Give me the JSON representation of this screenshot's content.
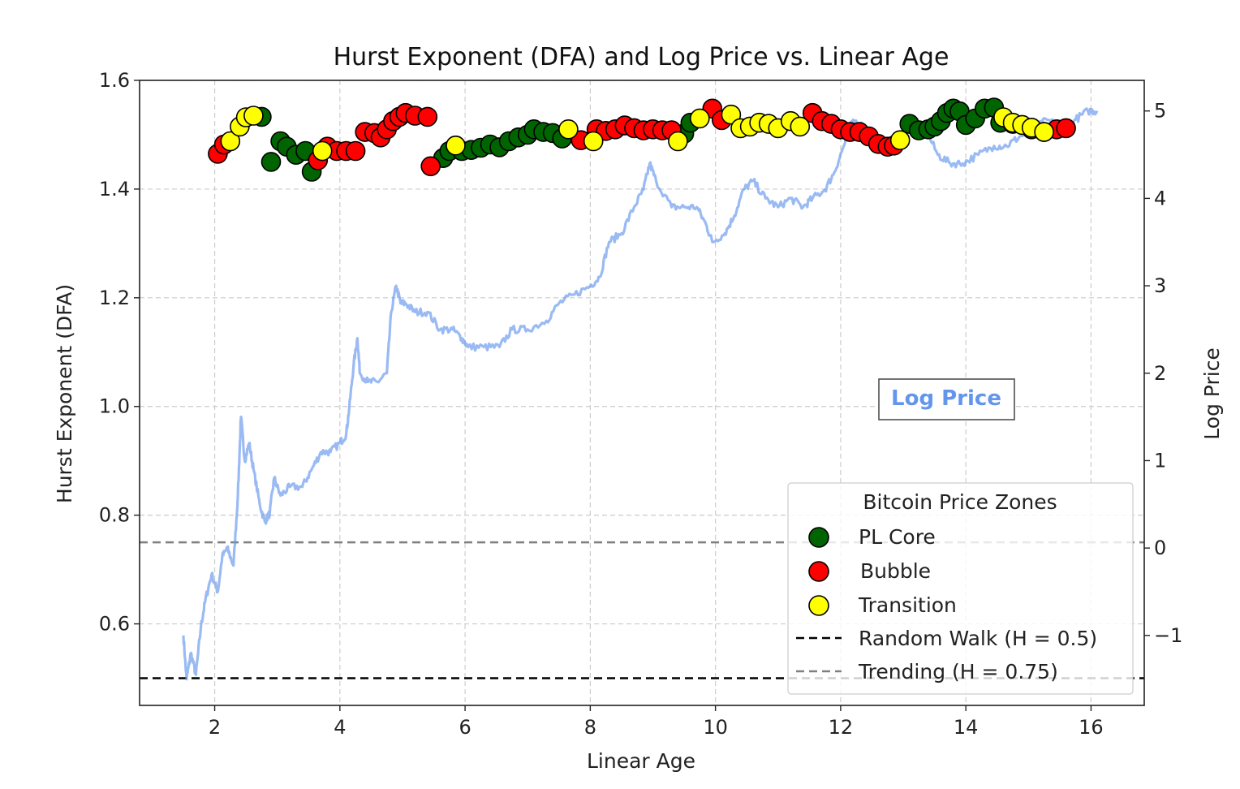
{
  "chart_data": {
    "type": "scatter",
    "title": "Hurst Exponent (DFA) and Log Price vs. Linear Age",
    "xlabel": "Linear Age",
    "ylabel": "Hurst Exponent (DFA)",
    "ylabel_right": "Log Price",
    "xlim": [
      0.8,
      16.85
    ],
    "ylim": [
      0.45,
      1.6
    ],
    "ylim_right": [
      -1.8,
      5.35
    ],
    "x_ticks": [
      "2",
      "4",
      "6",
      "8",
      "10",
      "12",
      "14",
      "16"
    ],
    "y_ticks": [
      "0.6",
      "0.8",
      "1.0",
      "1.2",
      "1.4",
      "1.6"
    ],
    "y_right_ticks": [
      "−1",
      "0",
      "1",
      "2",
      "3",
      "4",
      "5"
    ],
    "grid": true,
    "annotation": "Log Price",
    "colors": {
      "pl_core": "#006400",
      "bubble": "#ff0000",
      "transition": "#ffff00",
      "log_price": "#6495ed",
      "random_walk": "#000000",
      "trending": "#808080"
    },
    "legend": {
      "title": "Bitcoin Price Zones",
      "placement": "lower right",
      "entries": [
        "PL Core",
        "Bubble",
        "Transition",
        "Random Walk (H = 0.5)",
        "Trending (H = 0.75)"
      ]
    },
    "reference_lines": [
      {
        "name": "Random Walk (H = 0.5)",
        "y": 0.5,
        "style": "dashed",
        "color": "#000000"
      },
      {
        "name": "Trending (H = 0.75)",
        "y": 0.75,
        "style": "dashed",
        "color": "#808080"
      }
    ],
    "log_price_series": {
      "name": "Log Price",
      "axis": "right",
      "points": [
        [
          1.5,
          -1.0
        ],
        [
          1.55,
          -1.5
        ],
        [
          1.62,
          -1.2
        ],
        [
          1.7,
          -1.45
        ],
        [
          1.78,
          -0.9
        ],
        [
          1.85,
          -0.6
        ],
        [
          1.95,
          -0.3
        ],
        [
          2.05,
          -0.5
        ],
        [
          2.12,
          -0.1
        ],
        [
          2.2,
          0.0
        ],
        [
          2.3,
          -0.2
        ],
        [
          2.37,
          0.6
        ],
        [
          2.42,
          1.5
        ],
        [
          2.48,
          1.0
        ],
        [
          2.55,
          1.2
        ],
        [
          2.62,
          0.9
        ],
        [
          2.72,
          0.5
        ],
        [
          2.8,
          0.3
        ],
        [
          2.88,
          0.4
        ],
        [
          2.95,
          0.8
        ],
        [
          3.05,
          0.6
        ],
        [
          3.2,
          0.7
        ],
        [
          3.4,
          0.7
        ],
        [
          3.55,
          0.9
        ],
        [
          3.7,
          1.1
        ],
        [
          3.85,
          1.1
        ],
        [
          4.0,
          1.2
        ],
        [
          4.1,
          1.3
        ],
        [
          4.15,
          1.6
        ],
        [
          4.22,
          2.1
        ],
        [
          4.28,
          2.4
        ],
        [
          4.32,
          2.0
        ],
        [
          4.45,
          1.9
        ],
        [
          4.6,
          1.9
        ],
        [
          4.75,
          2.0
        ],
        [
          4.82,
          2.7
        ],
        [
          4.9,
          3.0
        ],
        [
          4.97,
          2.8
        ],
        [
          5.05,
          2.8
        ],
        [
          5.2,
          2.7
        ],
        [
          5.4,
          2.7
        ],
        [
          5.6,
          2.5
        ],
        [
          5.8,
          2.5
        ],
        [
          5.95,
          2.4
        ],
        [
          6.05,
          2.3
        ],
        [
          6.3,
          2.3
        ],
        [
          6.55,
          2.3
        ],
        [
          6.75,
          2.5
        ],
        [
          7.0,
          2.5
        ],
        [
          7.3,
          2.6
        ],
        [
          7.5,
          2.8
        ],
        [
          7.75,
          2.9
        ],
        [
          8.0,
          3.0
        ],
        [
          8.15,
          3.1
        ],
        [
          8.3,
          3.5
        ],
        [
          8.5,
          3.6
        ],
        [
          8.7,
          3.9
        ],
        [
          8.85,
          4.1
        ],
        [
          8.95,
          4.4
        ],
        [
          9.05,
          4.2
        ],
        [
          9.3,
          3.9
        ],
        [
          9.5,
          3.9
        ],
        [
          9.7,
          3.9
        ],
        [
          9.85,
          3.7
        ],
        [
          9.95,
          3.5
        ],
        [
          10.15,
          3.6
        ],
        [
          10.3,
          3.8
        ],
        [
          10.45,
          4.1
        ],
        [
          10.6,
          4.2
        ],
        [
          10.8,
          4.0
        ],
        [
          11.0,
          3.9
        ],
        [
          11.2,
          4.0
        ],
        [
          11.4,
          3.9
        ],
        [
          11.55,
          4.0
        ],
        [
          11.75,
          4.1
        ],
        [
          11.9,
          4.3
        ],
        [
          12.05,
          4.6
        ],
        [
          12.2,
          4.9
        ],
        [
          12.4,
          4.8
        ],
        [
          12.55,
          4.6
        ],
        [
          12.75,
          4.6
        ],
        [
          12.95,
          4.7
        ],
        [
          13.15,
          4.8
        ],
        [
          13.35,
          4.8
        ],
        [
          13.55,
          4.5
        ],
        [
          13.75,
          4.4
        ],
        [
          13.95,
          4.4
        ],
        [
          14.2,
          4.5
        ],
        [
          14.45,
          4.6
        ],
        [
          14.65,
          4.6
        ],
        [
          14.85,
          4.7
        ],
        [
          15.1,
          4.8
        ],
        [
          15.3,
          4.9
        ],
        [
          15.55,
          4.8
        ],
        [
          15.75,
          4.9
        ],
        [
          15.95,
          5.0
        ],
        [
          16.1,
          5.0
        ]
      ]
    },
    "series": [
      {
        "name": "PL Core",
        "points": [
          [
            2.75,
            1.533
          ],
          [
            2.9,
            1.45
          ],
          [
            3.05,
            1.488
          ],
          [
            3.15,
            1.478
          ],
          [
            3.3,
            1.463
          ],
          [
            3.45,
            1.47
          ],
          [
            3.55,
            1.432
          ],
          [
            5.65,
            1.457
          ],
          [
            5.75,
            1.47
          ],
          [
            5.85,
            1.48
          ],
          [
            5.95,
            1.47
          ],
          [
            6.1,
            1.472
          ],
          [
            6.25,
            1.476
          ],
          [
            6.4,
            1.482
          ],
          [
            6.55,
            1.477
          ],
          [
            6.7,
            1.488
          ],
          [
            6.85,
            1.495
          ],
          [
            7.0,
            1.5
          ],
          [
            7.1,
            1.51
          ],
          [
            7.25,
            1.505
          ],
          [
            7.4,
            1.503
          ],
          [
            7.55,
            1.493
          ],
          [
            9.5,
            1.502
          ],
          [
            9.6,
            1.522
          ],
          [
            13.1,
            1.52
          ],
          [
            13.25,
            1.508
          ],
          [
            13.4,
            1.51
          ],
          [
            13.5,
            1.515
          ],
          [
            13.6,
            1.525
          ],
          [
            13.7,
            1.54
          ],
          [
            13.8,
            1.548
          ],
          [
            13.9,
            1.543
          ],
          [
            14.0,
            1.518
          ],
          [
            14.15,
            1.53
          ],
          [
            14.3,
            1.548
          ],
          [
            14.45,
            1.55
          ],
          [
            14.55,
            1.522
          ],
          [
            14.75,
            1.52
          ],
          [
            15.05,
            1.51
          ],
          [
            15.25,
            1.505
          ]
        ]
      },
      {
        "name": "Bubble",
        "points": [
          [
            2.05,
            1.465
          ],
          [
            2.15,
            1.482
          ],
          [
            3.65,
            1.453
          ],
          [
            3.8,
            1.478
          ],
          [
            3.95,
            1.47
          ],
          [
            4.1,
            1.47
          ],
          [
            4.25,
            1.47
          ],
          [
            4.4,
            1.505
          ],
          [
            4.55,
            1.503
          ],
          [
            4.65,
            1.495
          ],
          [
            4.75,
            1.51
          ],
          [
            4.85,
            1.525
          ],
          [
            4.95,
            1.533
          ],
          [
            5.05,
            1.54
          ],
          [
            5.2,
            1.535
          ],
          [
            5.4,
            1.533
          ],
          [
            5.45,
            1.442
          ],
          [
            7.85,
            1.49
          ],
          [
            8.1,
            1.51
          ],
          [
            8.25,
            1.507
          ],
          [
            8.4,
            1.51
          ],
          [
            8.55,
            1.517
          ],
          [
            8.7,
            1.512
          ],
          [
            8.85,
            1.508
          ],
          [
            9.0,
            1.51
          ],
          [
            9.15,
            1.508
          ],
          [
            9.3,
            1.508
          ],
          [
            9.95,
            1.548
          ],
          [
            10.1,
            1.527
          ],
          [
            11.55,
            1.54
          ],
          [
            11.7,
            1.525
          ],
          [
            11.85,
            1.52
          ],
          [
            12.0,
            1.51
          ],
          [
            12.15,
            1.505
          ],
          [
            12.3,
            1.505
          ],
          [
            12.45,
            1.497
          ],
          [
            12.6,
            1.483
          ],
          [
            12.75,
            1.478
          ],
          [
            12.85,
            1.48
          ],
          [
            15.45,
            1.51
          ],
          [
            15.6,
            1.512
          ]
        ]
      },
      {
        "name": "Transition",
        "points": [
          [
            2.25,
            1.488
          ],
          [
            2.4,
            1.515
          ],
          [
            2.5,
            1.532
          ],
          [
            2.62,
            1.535
          ],
          [
            3.72,
            1.47
          ],
          [
            5.85,
            1.48
          ],
          [
            7.65,
            1.51
          ],
          [
            8.05,
            1.488
          ],
          [
            9.4,
            1.488
          ],
          [
            9.75,
            1.53
          ],
          [
            10.25,
            1.537
          ],
          [
            10.4,
            1.512
          ],
          [
            10.55,
            1.515
          ],
          [
            10.7,
            1.522
          ],
          [
            10.85,
            1.52
          ],
          [
            11.0,
            1.512
          ],
          [
            11.2,
            1.525
          ],
          [
            11.35,
            1.515
          ],
          [
            12.95,
            1.49
          ],
          [
            14.6,
            1.532
          ],
          [
            14.75,
            1.522
          ],
          [
            14.9,
            1.518
          ],
          [
            15.05,
            1.513
          ],
          [
            15.25,
            1.505
          ]
        ]
      }
    ]
  }
}
